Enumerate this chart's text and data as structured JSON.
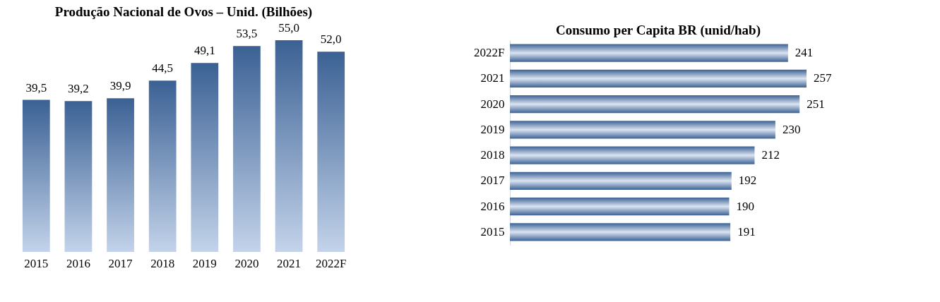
{
  "chart_data": [
    {
      "type": "bar",
      "title": "Produção Nacional de Ovos – Unid. (Bilhões)",
      "categories": [
        "2015",
        "2016",
        "2017",
        "2018",
        "2019",
        "2020",
        "2021",
        "2022F"
      ],
      "series": [
        {
          "color": "#3b6194",
          "values": [
            39.5,
            39.2,
            39.9,
            44.5,
            49.1,
            53.5,
            55.0,
            52.0
          ],
          "value_labels": [
            "39,5",
            "39,2",
            "39,9",
            "44,5",
            "49,1",
            "53,5",
            "55,0",
            "52,0"
          ]
        }
      ]
    },
    {
      "type": "bar",
      "title": "Consumo per Capita BR (unid/hab)",
      "orientation": "horizontal",
      "categories": [
        "2022F",
        "2021",
        "2020",
        "2019",
        "2018",
        "2017",
        "2016",
        "2015"
      ],
      "series": [
        {
          "color": "#3b6194",
          "values": [
            241,
            257,
            251,
            230,
            212,
            192,
            190,
            191
          ]
        }
      ],
      "data_labels": true
    }
  ]
}
